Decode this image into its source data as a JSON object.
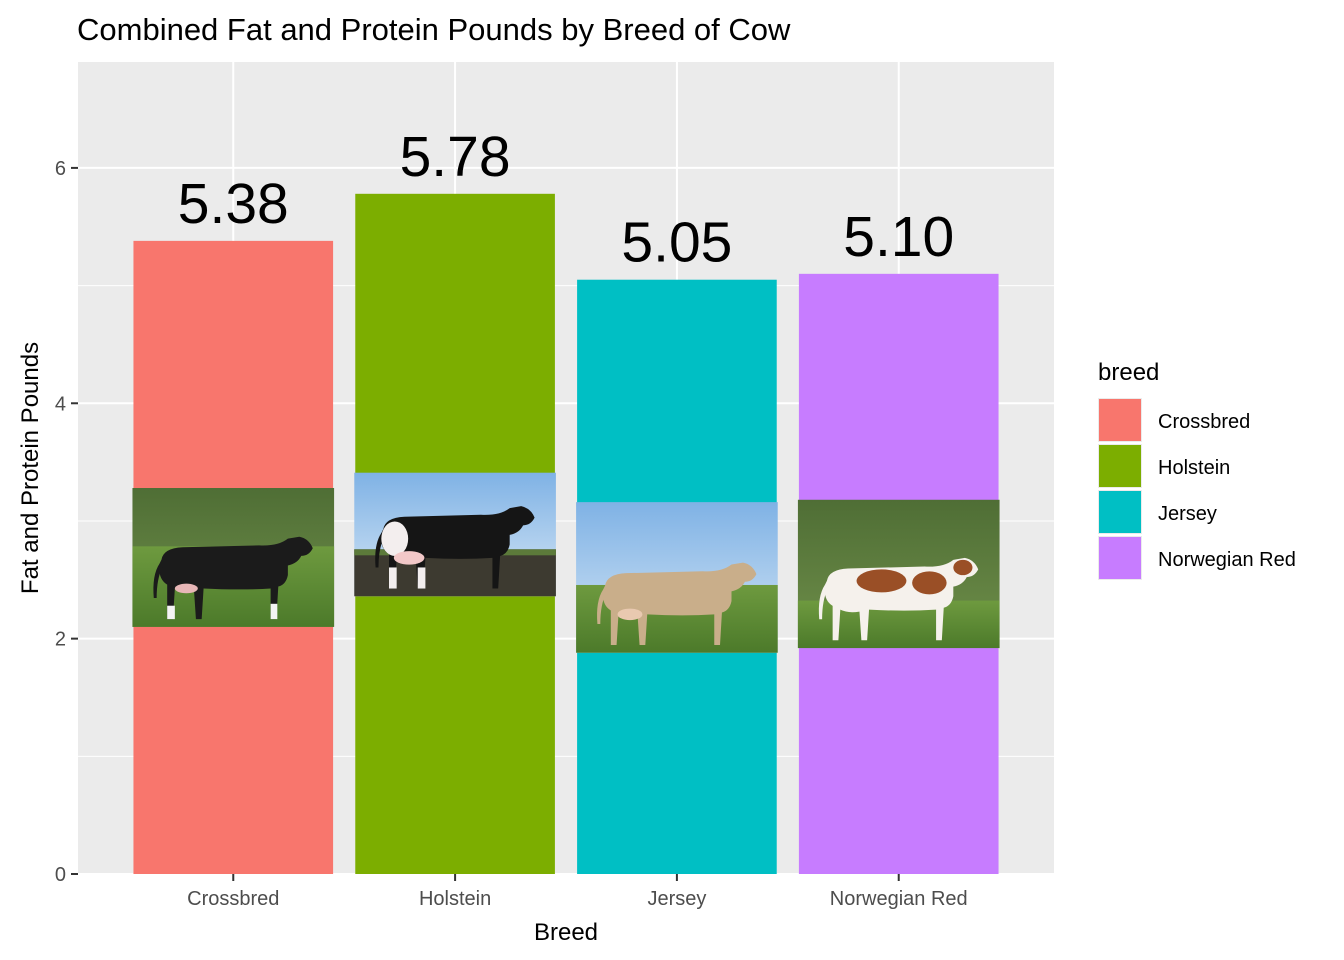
{
  "chart_data": {
    "type": "bar",
    "title": "Combined Fat and Protein Pounds by Breed of Cow",
    "xlabel": "Breed",
    "ylabel": "Fat and Protein Pounds",
    "categories": [
      "Crossbred",
      "Holstein",
      "Jersey",
      "Norwegian Red"
    ],
    "values": [
      5.38,
      5.78,
      5.05,
      5.1
    ],
    "value_labels": [
      "5.38",
      "5.78",
      "5.05",
      "5.10"
    ],
    "colors": [
      "#F8766D",
      "#7CAE00",
      "#00BFC4",
      "#C77CFF"
    ],
    "ylim": [
      0,
      6.9
    ],
    "y_ticks": [
      0,
      2,
      4,
      6
    ],
    "y_tick_labels": [
      "0",
      "2",
      "4",
      "6"
    ],
    "grid": true,
    "legend": {
      "title": "breed",
      "position": "right",
      "entries": [
        "Crossbred",
        "Holstein",
        "Jersey",
        "Norwegian Red"
      ]
    },
    "bar_images": [
      {
        "category": "Crossbred",
        "y_range": [
          2.1,
          3.28
        ],
        "depicts": "black-and-white cow"
      },
      {
        "category": "Holstein",
        "y_range": [
          2.36,
          3.41
        ],
        "depicts": "black-and-white cow"
      },
      {
        "category": "Jersey",
        "y_range": [
          1.88,
          3.16
        ],
        "depicts": "fawn cow"
      },
      {
        "category": "Norwegian Red",
        "y_range": [
          1.92,
          3.18
        ],
        "depicts": "red-and-white cow"
      }
    ]
  }
}
